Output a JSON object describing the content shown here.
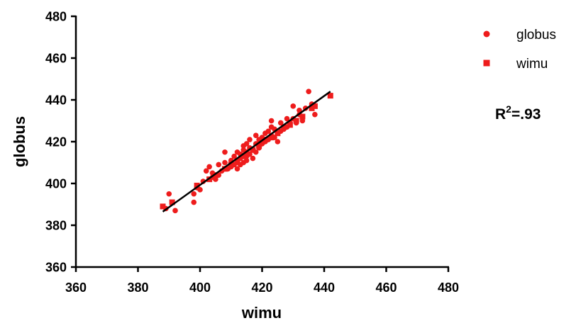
{
  "chart_data": {
    "type": "scatter",
    "xlabel": "wimu",
    "ylabel": "globus",
    "xlim": [
      360,
      480
    ],
    "ylim": [
      360,
      480
    ],
    "xticks": [
      360,
      380,
      400,
      420,
      440,
      460,
      480
    ],
    "yticks": [
      360,
      380,
      400,
      420,
      440,
      460,
      480
    ],
    "grid": false,
    "legend_position": "top-right",
    "series": [
      {
        "name": "globus",
        "marker": "circle",
        "color": "#ee1c1c",
        "points": [
          [
            389,
            388
          ],
          [
            390,
            395
          ],
          [
            392,
            387
          ],
          [
            398,
            391
          ],
          [
            398,
            395
          ],
          [
            399,
            398
          ],
          [
            400,
            397
          ],
          [
            401,
            401
          ],
          [
            402,
            406
          ],
          [
            403,
            408
          ],
          [
            404,
            403
          ],
          [
            404,
            405
          ],
          [
            405,
            402
          ],
          [
            406,
            404
          ],
          [
            406,
            409
          ],
          [
            407,
            406
          ],
          [
            408,
            410
          ],
          [
            408,
            415
          ],
          [
            409,
            407
          ],
          [
            410,
            408
          ],
          [
            410,
            411
          ],
          [
            411,
            413
          ],
          [
            411,
            409
          ],
          [
            412,
            407
          ],
          [
            412,
            410
          ],
          [
            412,
            415
          ],
          [
            413,
            409
          ],
          [
            413,
            412
          ],
          [
            413,
            414
          ],
          [
            414,
            410
          ],
          [
            414,
            416
          ],
          [
            414,
            418
          ],
          [
            415,
            413
          ],
          [
            415,
            419
          ],
          [
            415,
            411
          ],
          [
            416,
            414
          ],
          [
            416,
            417
          ],
          [
            416,
            421
          ],
          [
            417,
            416
          ],
          [
            417,
            412
          ],
          [
            418,
            415
          ],
          [
            418,
            419
          ],
          [
            418,
            423
          ],
          [
            419,
            417
          ],
          [
            419,
            421
          ],
          [
            420,
            419
          ],
          [
            420,
            422
          ],
          [
            421,
            420
          ],
          [
            421,
            424
          ],
          [
            422,
            421
          ],
          [
            422,
            425
          ],
          [
            423,
            423
          ],
          [
            423,
            427
          ],
          [
            423,
            430
          ],
          [
            424,
            422
          ],
          [
            424,
            426
          ],
          [
            425,
            420
          ],
          [
            425,
            424
          ],
          [
            426,
            425
          ],
          [
            426,
            429
          ],
          [
            427,
            426
          ],
          [
            428,
            427
          ],
          [
            428,
            431
          ],
          [
            429,
            429
          ],
          [
            430,
            431
          ],
          [
            430,
            437
          ],
          [
            431,
            429
          ],
          [
            432,
            433
          ],
          [
            432,
            435
          ],
          [
            433,
            430
          ],
          [
            434,
            436
          ],
          [
            435,
            444
          ],
          [
            436,
            438
          ],
          [
            437,
            433
          ]
        ]
      },
      {
        "name": "wimu",
        "marker": "square",
        "color": "#ee1c1c",
        "points": [
          [
            388,
            389
          ],
          [
            391,
            391
          ],
          [
            399,
            399
          ],
          [
            403,
            402
          ],
          [
            405,
            404
          ],
          [
            408,
            407
          ],
          [
            410,
            409
          ],
          [
            412,
            411
          ],
          [
            414,
            413
          ],
          [
            415,
            415
          ],
          [
            417,
            416
          ],
          [
            419,
            418
          ],
          [
            420,
            420
          ],
          [
            421,
            421
          ],
          [
            423,
            422
          ],
          [
            425,
            424
          ],
          [
            427,
            427
          ],
          [
            429,
            428
          ],
          [
            431,
            430
          ],
          [
            433,
            432
          ],
          [
            436,
            436
          ],
          [
            437,
            437
          ],
          [
            442,
            442
          ]
        ]
      }
    ],
    "fit_line": {
      "x": [
        388,
        442
      ],
      "y": [
        386.5,
        444
      ]
    },
    "annotation": {
      "base": "R",
      "sup": "2",
      "rest": "=.93"
    }
  }
}
